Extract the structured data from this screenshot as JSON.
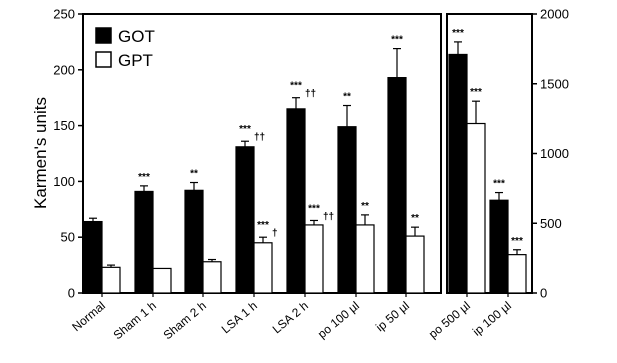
{
  "chart_data": [
    {
      "type": "bar",
      "ylabel": "Karmen's units",
      "ylim": [
        0,
        250
      ],
      "yticks": [
        0,
        50,
        100,
        150,
        200,
        250
      ],
      "categories": [
        "Normal",
        "Sham 1 h",
        "Sham 2 h",
        "LSA 1 h",
        "LSA 2 h",
        "po 100 µl",
        "ip 50 µl"
      ],
      "legend": {
        "position": "top-left",
        "entries": [
          "GOT",
          "GPT"
        ]
      },
      "series": [
        {
          "name": "GOT",
          "color": "#000000",
          "values": [
            64,
            91,
            92,
            131,
            165,
            149,
            193
          ],
          "errors": [
            3,
            5,
            7,
            5,
            10,
            19,
            26
          ],
          "annotations": [
            "",
            "***",
            "**",
            "***\n††",
            "***\n††",
            "**",
            "***"
          ]
        },
        {
          "name": "GPT",
          "color": "#ffffff",
          "values": [
            23,
            22,
            28,
            45,
            61,
            61,
            51
          ],
          "errors": [
            2,
            0,
            2,
            5,
            4,
            9,
            8
          ],
          "annotations": [
            "",
            "",
            "",
            "***\n†",
            "***\n††",
            "**",
            "**"
          ]
        }
      ]
    },
    {
      "type": "bar",
      "ylim": [
        0,
        2000
      ],
      "yticks": [
        0,
        500,
        1000,
        1500,
        2000
      ],
      "yaxis_side": "right",
      "categories": [
        "po 500 µl",
        "ip 100 µl"
      ],
      "series": [
        {
          "name": "GOT",
          "color": "#000000",
          "values": [
            1710,
            665
          ],
          "errors": [
            90,
            55
          ],
          "annotations": [
            "***",
            "***"
          ]
        },
        {
          "name": "GPT",
          "color": "#ffffff",
          "values": [
            1215,
            275
          ],
          "errors": [
            160,
            35
          ],
          "annotations": [
            "***",
            "***"
          ]
        }
      ]
    }
  ]
}
